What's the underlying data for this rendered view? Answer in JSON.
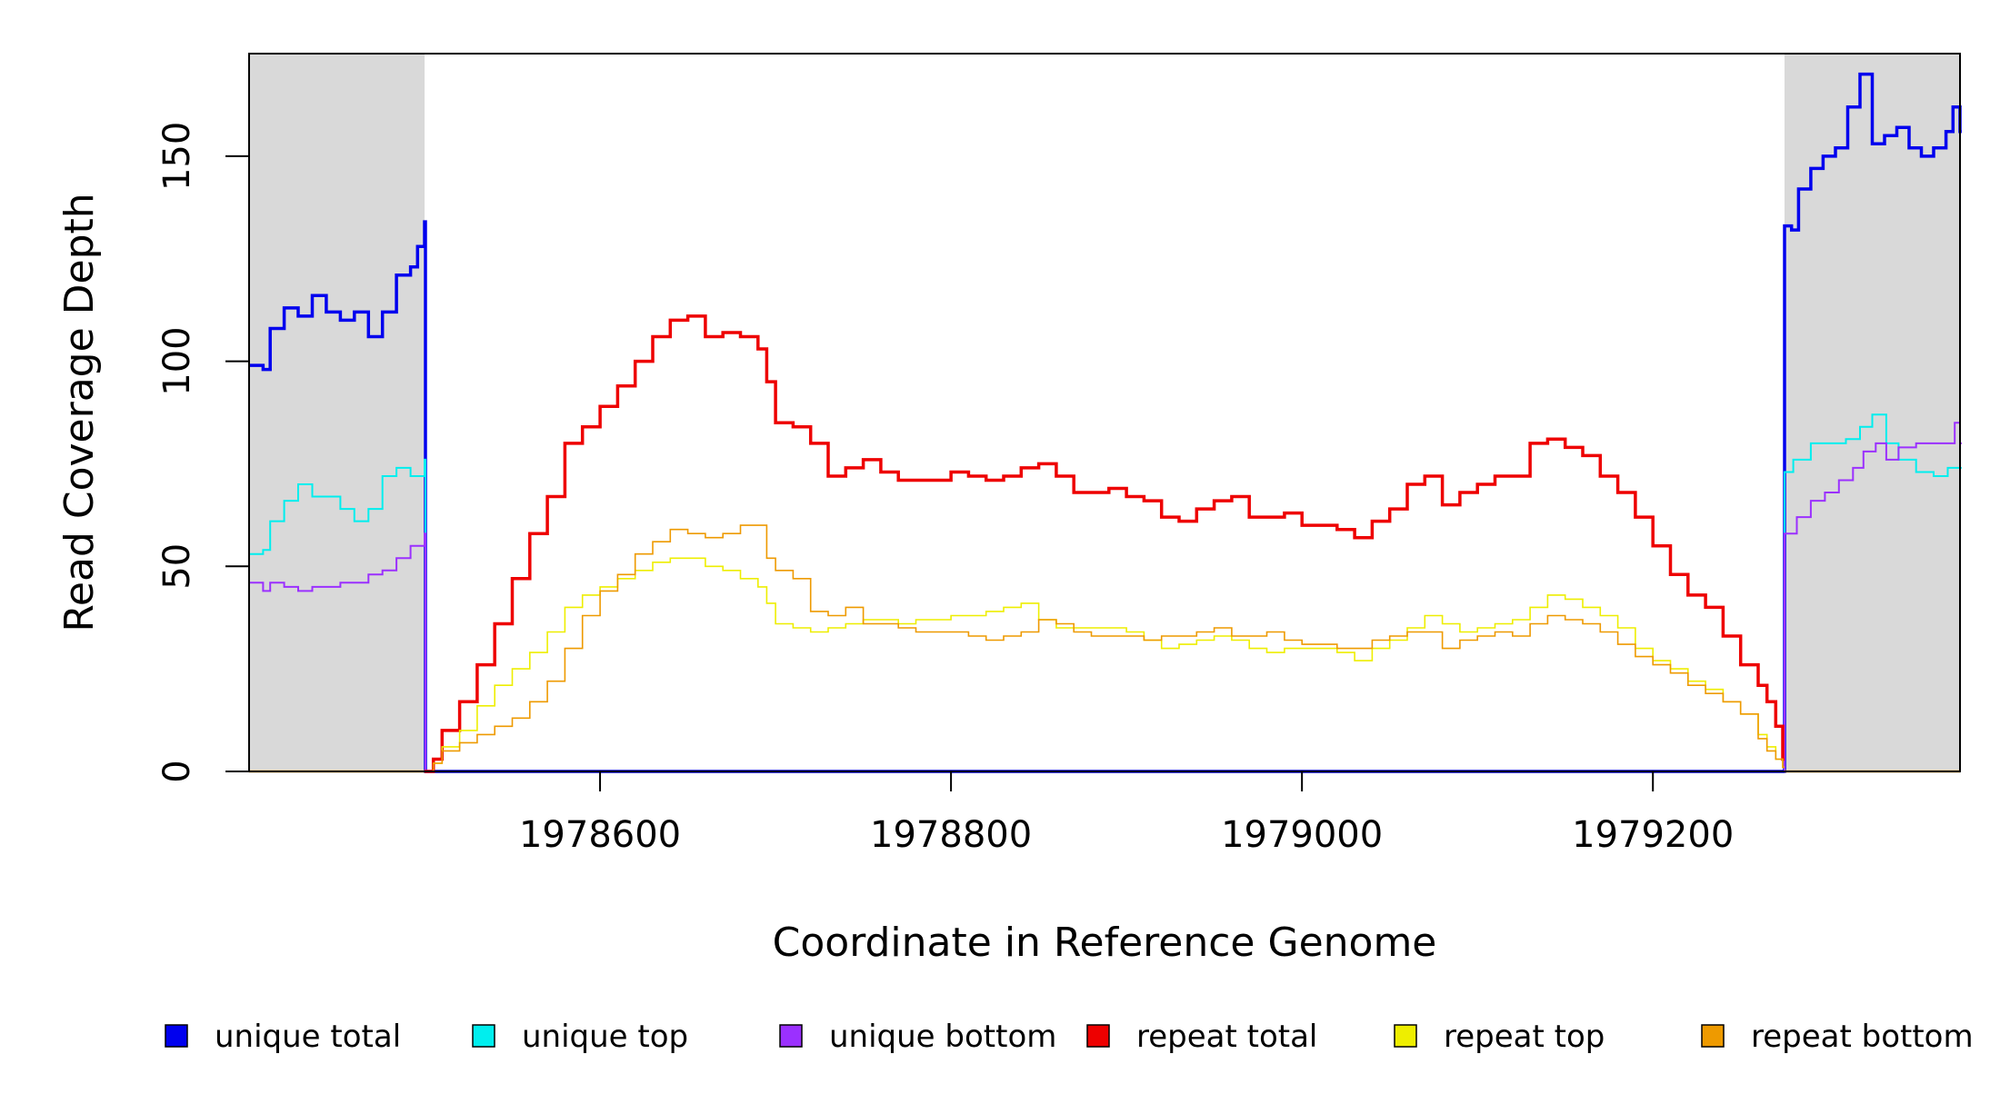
{
  "chart_data": {
    "type": "line",
    "title": "",
    "xlabel": "Coordinate in Reference Genome",
    "ylabel": "Read Coverage Depth",
    "xlim": [
      1978400,
      1979375
    ],
    "ylim": [
      0,
      175
    ],
    "x_ticks": [
      1978600,
      1978800,
      1979000,
      1979200
    ],
    "y_ticks": [
      0,
      50,
      100,
      150
    ],
    "grid": false,
    "shaded_regions": [
      {
        "x_start": 1978400,
        "x_end": 1978500,
        "color": "#d9d9d9"
      },
      {
        "x_start": 1979275,
        "x_end": 1979375,
        "color": "#d9d9d9"
      }
    ],
    "legend": {
      "placement": "bottom"
    },
    "series": [
      {
        "name": "unique total",
        "color": "#0000ee",
        "x": [
          1978400,
          1978408,
          1978412,
          1978420,
          1978428,
          1978436,
          1978444,
          1978452,
          1978460,
          1978468,
          1978476,
          1978484,
          1978492,
          1978496,
          1978500,
          1978500.5,
          1979274.5,
          1979275,
          1979279,
          1979283,
          1979290,
          1979297,
          1979304,
          1979311,
          1979318,
          1979325,
          1979332,
          1979339,
          1979346,
          1979353,
          1979360,
          1979367,
          1979371,
          1979375
        ],
        "y": [
          99,
          98,
          108,
          113,
          111,
          116,
          112,
          110,
          112,
          106,
          112,
          121,
          123,
          128,
          134,
          0,
          0,
          133,
          132,
          142,
          147,
          150,
          152,
          162,
          170,
          153,
          155,
          157,
          152,
          150,
          152,
          156,
          162,
          156
        ]
      },
      {
        "name": "unique top",
        "color": "#00eeee",
        "x": [
          1978400,
          1978408,
          1978412,
          1978420,
          1978428,
          1978436,
          1978444,
          1978452,
          1978460,
          1978468,
          1978476,
          1978484,
          1978492,
          1978500,
          1978500.5,
          1979274.5,
          1979275,
          1979280,
          1979290,
          1979300,
          1979310,
          1979318,
          1979325,
          1979333,
          1979340,
          1979350,
          1979360,
          1979368,
          1979375
        ],
        "y": [
          53,
          54,
          61,
          66,
          70,
          67,
          67,
          64,
          61,
          64,
          72,
          74,
          72,
          76,
          0,
          0,
          73,
          76,
          80,
          80,
          81,
          84,
          87,
          80,
          76,
          73,
          72,
          74,
          74
        ]
      },
      {
        "name": "unique bottom",
        "color": "#9b30ff",
        "x": [
          1978400,
          1978408,
          1978412,
          1978420,
          1978428,
          1978436,
          1978444,
          1978452,
          1978460,
          1978468,
          1978476,
          1978484,
          1978492,
          1978500,
          1978500.5,
          1979274.5,
          1979275,
          1979282,
          1979290,
          1979298,
          1979306,
          1979314,
          1979320,
          1979327,
          1979333,
          1979340,
          1979350,
          1979360,
          1979368,
          1979372,
          1979375
        ],
        "y": [
          46,
          44,
          46,
          45,
          44,
          45,
          45,
          46,
          46,
          48,
          49,
          52,
          55,
          58,
          0,
          0,
          58,
          62,
          66,
          68,
          71,
          74,
          78,
          80,
          76,
          79,
          80,
          80,
          80,
          85,
          80
        ]
      },
      {
        "name": "repeat total",
        "color": "#ee0000",
        "x": [
          1978500,
          1978505,
          1978510,
          1978520,
          1978530,
          1978540,
          1978550,
          1978560,
          1978570,
          1978580,
          1978590,
          1978600,
          1978610,
          1978620,
          1978630,
          1978640,
          1978650,
          1978660,
          1978670,
          1978680,
          1978690,
          1978695,
          1978700,
          1978710,
          1978720,
          1978730,
          1978740,
          1978750,
          1978760,
          1978770,
          1978780,
          1978790,
          1978800,
          1978810,
          1978820,
          1978830,
          1978840,
          1978850,
          1978860,
          1978870,
          1978880,
          1978890,
          1978900,
          1978910,
          1978920,
          1978930,
          1978940,
          1978950,
          1978960,
          1978970,
          1978980,
          1978990,
          1979000,
          1979010,
          1979020,
          1979030,
          1979040,
          1979050,
          1979060,
          1979070,
          1979080,
          1979090,
          1979100,
          1979110,
          1979120,
          1979130,
          1979140,
          1979150,
          1979160,
          1979170,
          1979180,
          1979190,
          1979200,
          1979210,
          1979220,
          1979230,
          1979240,
          1979250,
          1979260,
          1979265,
          1979270,
          1979274
        ],
        "y": [
          0,
          3,
          10,
          17,
          26,
          36,
          47,
          58,
          67,
          80,
          84,
          89,
          94,
          100,
          106,
          110,
          111,
          106,
          107,
          106,
          103,
          95,
          85,
          84,
          80,
          72,
          74,
          76,
          73,
          71,
          71,
          71,
          73,
          72,
          71,
          72,
          74,
          75,
          72,
          68,
          68,
          69,
          67,
          66,
          62,
          61,
          64,
          66,
          67,
          62,
          62,
          63,
          60,
          60,
          59,
          57,
          61,
          64,
          70,
          72,
          65,
          68,
          70,
          72,
          72,
          80,
          81,
          79,
          77,
          72,
          68,
          62,
          55,
          48,
          43,
          40,
          33,
          26,
          21,
          17,
          11,
          3
        ]
      },
      {
        "name": "repeat top",
        "color": "#eeee00",
        "x": [
          1978500,
          1978505,
          1978510,
          1978520,
          1978530,
          1978540,
          1978550,
          1978560,
          1978570,
          1978580,
          1978590,
          1978600,
          1978610,
          1978620,
          1978630,
          1978640,
          1978650,
          1978660,
          1978670,
          1978680,
          1978690,
          1978695,
          1978700,
          1978710,
          1978720,
          1978730,
          1978740,
          1978750,
          1978760,
          1978770,
          1978780,
          1978790,
          1978800,
          1978810,
          1978820,
          1978830,
          1978840,
          1978850,
          1978860,
          1978870,
          1978880,
          1978890,
          1978900,
          1978910,
          1978920,
          1978930,
          1978940,
          1978950,
          1978960,
          1978970,
          1978980,
          1978990,
          1979000,
          1979010,
          1979020,
          1979030,
          1979040,
          1979050,
          1979060,
          1979070,
          1979080,
          1979090,
          1979100,
          1979110,
          1979120,
          1979130,
          1979140,
          1979150,
          1979160,
          1979170,
          1979180,
          1979190,
          1979200,
          1979210,
          1979220,
          1979230,
          1979240,
          1979250,
          1979260,
          1979265,
          1979270,
          1979274
        ],
        "y": [
          0,
          2,
          6,
          10,
          16,
          21,
          25,
          29,
          34,
          40,
          43,
          45,
          47,
          49,
          51,
          52,
          52,
          50,
          49,
          47,
          45,
          41,
          36,
          35,
          34,
          35,
          36,
          37,
          37,
          36,
          37,
          37,
          38,
          38,
          39,
          40,
          41,
          37,
          35,
          35,
          35,
          35,
          34,
          32,
          30,
          31,
          32,
          33,
          32,
          30,
          29,
          30,
          30,
          30,
          29,
          27,
          30,
          32,
          35,
          38,
          36,
          34,
          35,
          36,
          37,
          40,
          43,
          42,
          40,
          38,
          35,
          30,
          27,
          25,
          22,
          20,
          17,
          14,
          9,
          6,
          3,
          1
        ]
      },
      {
        "name": "repeat bottom",
        "color": "#ee9a00",
        "x": [
          1978500,
          1978505,
          1978510,
          1978520,
          1978530,
          1978540,
          1978550,
          1978560,
          1978570,
          1978580,
          1978590,
          1978600,
          1978610,
          1978620,
          1978630,
          1978640,
          1978650,
          1978660,
          1978670,
          1978680,
          1978690,
          1978695,
          1978700,
          1978710,
          1978720,
          1978730,
          1978740,
          1978750,
          1978760,
          1978770,
          1978780,
          1978790,
          1978800,
          1978810,
          1978820,
          1978830,
          1978840,
          1978850,
          1978860,
          1978870,
          1978880,
          1978890,
          1978900,
          1978910,
          1978920,
          1978930,
          1978940,
          1978950,
          1978960,
          1978970,
          1978980,
          1978990,
          1979000,
          1979010,
          1979020,
          1979030,
          1979040,
          1979050,
          1979060,
          1979070,
          1979080,
          1979090,
          1979100,
          1979110,
          1979120,
          1979130,
          1979140,
          1979150,
          1979160,
          1979170,
          1979180,
          1979190,
          1979200,
          1979210,
          1979220,
          1979230,
          1979240,
          1979250,
          1979260,
          1979265,
          1979270,
          1979274
        ],
        "y": [
          0,
          2,
          5,
          7,
          9,
          11,
          13,
          17,
          22,
          30,
          38,
          44,
          48,
          53,
          56,
          59,
          58,
          57,
          58,
          60,
          60,
          52,
          49,
          47,
          39,
          38,
          40,
          36,
          36,
          35,
          34,
          34,
          34,
          33,
          32,
          33,
          34,
          37,
          36,
          34,
          33,
          33,
          33,
          32,
          33,
          33,
          34,
          35,
          33,
          33,
          34,
          32,
          31,
          31,
          30,
          30,
          32,
          33,
          34,
          34,
          30,
          32,
          33,
          34,
          33,
          36,
          38,
          37,
          36,
          34,
          31,
          28,
          26,
          24,
          21,
          19,
          17,
          14,
          8,
          5,
          3,
          1
        ]
      }
    ]
  }
}
